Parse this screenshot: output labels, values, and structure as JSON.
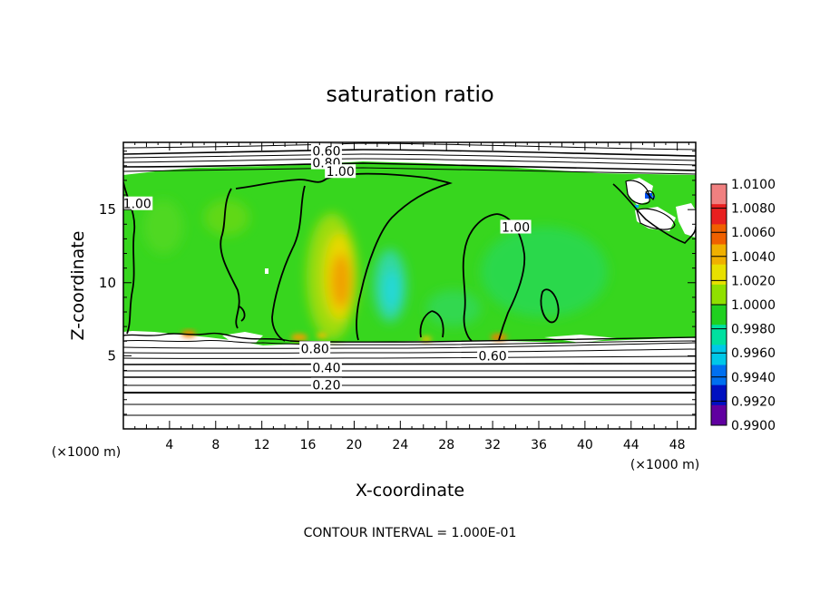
{
  "chart_data": {
    "type": "heatmap",
    "title": "saturation ratio",
    "xlabel": "X-coordinate",
    "ylabel": "Z-coordinate",
    "x_unit_label": "(×1000 m)",
    "z_unit_label": "(×1000 m)",
    "xlim": [
      0,
      49.6
    ],
    "ylim": [
      0,
      19.6
    ],
    "x_ticks": [
      4,
      8,
      12,
      16,
      20,
      24,
      28,
      32,
      36,
      40,
      44,
      48
    ],
    "y_ticks": [
      5,
      10,
      15
    ],
    "footer": "CONTOUR INTERVAL = 1.000E-01",
    "colorbar": {
      "levels": [
        "1.0100",
        "1.0080",
        "1.0060",
        "1.0040",
        "1.0020",
        "1.0000",
        "0.9980",
        "0.9960",
        "0.9940",
        "0.9920",
        "0.9900"
      ],
      "colors": [
        "#f08080",
        "#e82020",
        "#f06000",
        "#f0b000",
        "#e8e000",
        "#90e000",
        "#20d020",
        "#00e0a0",
        "#00c8e8",
        "#0070f0",
        "#0010c0",
        "#6000a0"
      ]
    },
    "contour_labels": [
      {
        "text": "0.60",
        "x": 17.6,
        "z": 19.0
      },
      {
        "text": "0.80",
        "x": 17.6,
        "z": 18.2
      },
      {
        "text": "1.00",
        "x": 18.8,
        "z": 17.6
      },
      {
        "text": "1.00",
        "x": 1.2,
        "z": 15.4
      },
      {
        "text": "1.00",
        "x": 34.0,
        "z": 13.8
      },
      {
        "text": "0.80",
        "x": 16.6,
        "z": 5.5
      },
      {
        "text": "0.40",
        "x": 17.6,
        "z": 4.2
      },
      {
        "text": "0.20",
        "x": 17.6,
        "z": 3.0
      },
      {
        "text": "0.60",
        "x": 32.0,
        "z": 5.0
      }
    ]
  }
}
